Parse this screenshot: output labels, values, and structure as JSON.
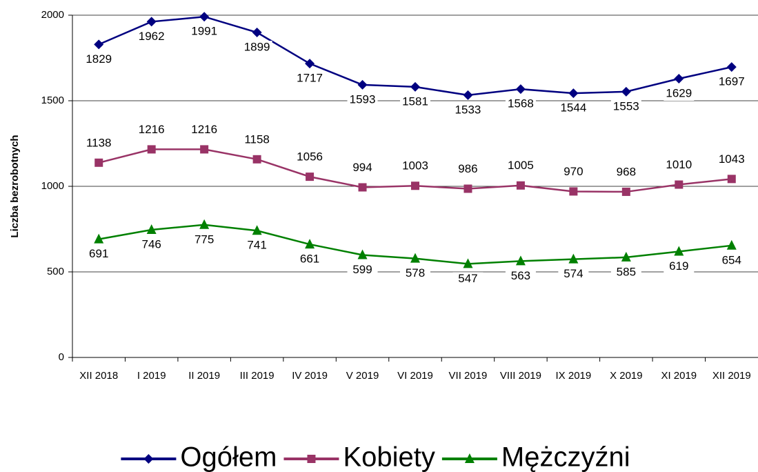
{
  "chart_data": {
    "type": "line",
    "y_label": "Liczba bezrobotnych",
    "categories": [
      "XII 2018",
      "I 2019",
      "II 2019",
      "III 2019",
      "IV 2019",
      "V 2019",
      "VI 2019",
      "VII 2019",
      "VIII 2019",
      "IX 2019",
      "X 2019",
      "XI 2019",
      "XII 2019"
    ],
    "series": [
      {
        "name": "Ogółem",
        "color": "#000080",
        "marker": "diamond",
        "values": [
          1829,
          1962,
          1991,
          1899,
          1717,
          1593,
          1581,
          1533,
          1568,
          1544,
          1553,
          1629,
          1697
        ]
      },
      {
        "name": "Kobiety",
        "color": "#993366",
        "marker": "square",
        "values": [
          1138,
          1216,
          1216,
          1158,
          1056,
          994,
          1003,
          986,
          1005,
          970,
          968,
          1010,
          1043
        ]
      },
      {
        "name": "Mężczyźni",
        "color": "#008000",
        "marker": "triangle",
        "values": [
          691,
          746,
          775,
          741,
          661,
          599,
          578,
          547,
          563,
          574,
          585,
          619,
          654
        ]
      }
    ],
    "ylim": [
      0,
      2000
    ],
    "yticks": [
      0,
      500,
      1000,
      1500,
      2000
    ],
    "grid": true,
    "legend": "bottom"
  }
}
